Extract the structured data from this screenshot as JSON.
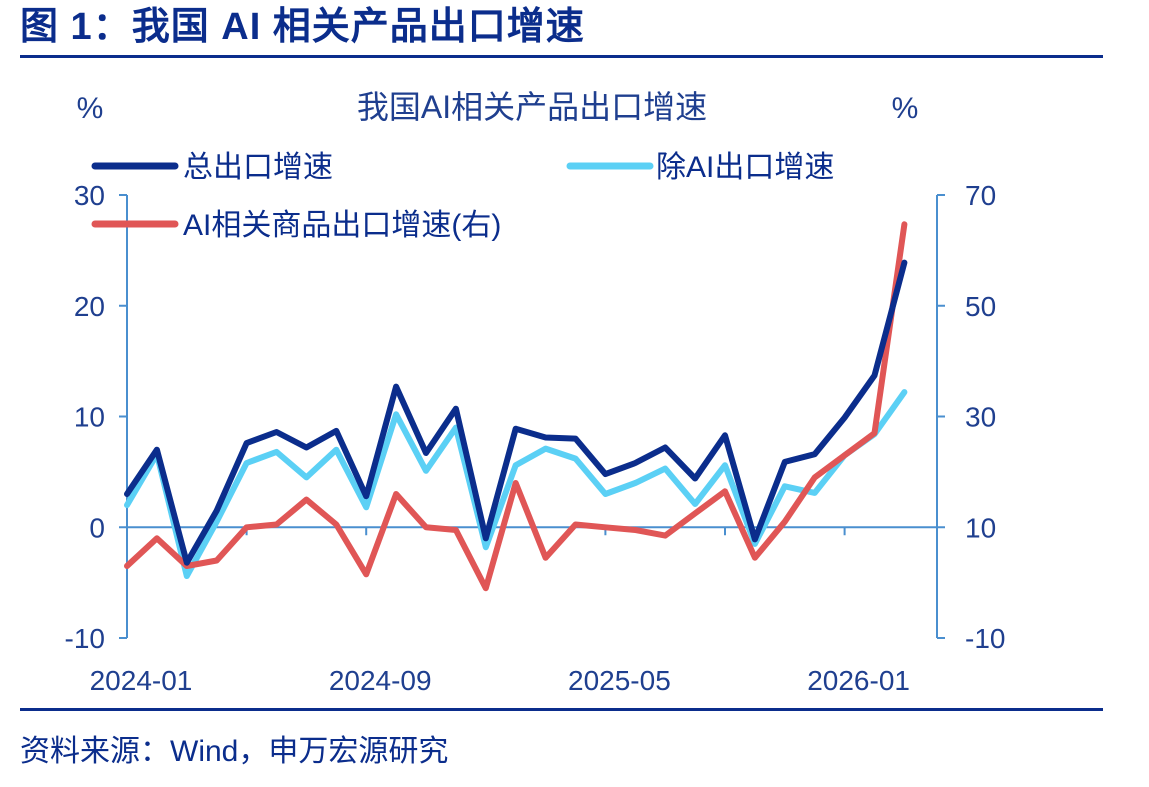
{
  "figure": {
    "title": "图 1：我国 AI 相关产品出口增速",
    "source": "资料来源：Wind，申万宏源研究"
  },
  "chart_data": {
    "type": "line",
    "title": "我国AI相关产品出口增速",
    "left_unit": "%",
    "right_unit": "%",
    "x": [
      "2024-01",
      "2024-02",
      "2024-03",
      "2024-04",
      "2024-05",
      "2024-06",
      "2024-07",
      "2024-08",
      "2024-09",
      "2024-10",
      "2024-11",
      "2024-12",
      "2025-01",
      "2025-02",
      "2025-03",
      "2025-04",
      "2025-05",
      "2025-06",
      "2025-07",
      "2025-08",
      "2025-09",
      "2025-10",
      "2025-11",
      "2025-12",
      "2026-01",
      "2026-02",
      "2026-03"
    ],
    "x_tick_labels": [
      "2024-01",
      "2024-09",
      "2025-05",
      "2026-01"
    ],
    "y_left": {
      "min": -10,
      "max": 30,
      "ticks": [
        -10,
        0,
        10,
        20,
        30
      ],
      "tick_labels": [
        "-10",
        "0",
        "10",
        "20",
        "30"
      ]
    },
    "y_right": {
      "min": -10,
      "max": 70,
      "ticks": [
        -10,
        10,
        30,
        50,
        70
      ],
      "tick_labels": [
        "-10",
        "10",
        "30",
        "50",
        "70"
      ]
    },
    "grid": false,
    "legend_position": "top",
    "series": [
      {
        "name": "总出口增速",
        "axis": "left",
        "color": "#0b2d8c",
        "values": [
          3.0,
          7.0,
          -3.2,
          1.5,
          7.6,
          8.6,
          7.2,
          8.7,
          2.8,
          12.7,
          6.7,
          10.7,
          -1.0,
          8.9,
          8.1,
          8.0,
          4.8,
          5.8,
          7.2,
          4.4,
          8.3,
          -1.1,
          5.9,
          6.6,
          9.9,
          13.7,
          23.9
        ]
      },
      {
        "name": "除AI出口增速",
        "axis": "left",
        "color": "#5bd0f5",
        "values": [
          2.0,
          6.6,
          -4.4,
          0.5,
          5.8,
          6.8,
          4.5,
          7.0,
          1.8,
          10.2,
          5.1,
          9.0,
          -1.8,
          5.6,
          7.1,
          6.2,
          3.0,
          4.0,
          5.3,
          2.1,
          5.6,
          -1.5,
          3.7,
          3.1,
          6.5,
          8.4,
          12.2
        ]
      },
      {
        "name": "AI相关商品出口增速(右)",
        "axis": "right",
        "color": "#e05656",
        "values": [
          3.0,
          8.0,
          3.0,
          4.0,
          10.0,
          10.5,
          15.0,
          10.5,
          1.5,
          16.0,
          10.0,
          9.5,
          -1.0,
          18.0,
          4.5,
          10.5,
          10.0,
          9.5,
          8.5,
          12.5,
          16.5,
          4.5,
          11.0,
          19.0,
          23.0,
          27.0,
          64.7
        ]
      }
    ]
  }
}
